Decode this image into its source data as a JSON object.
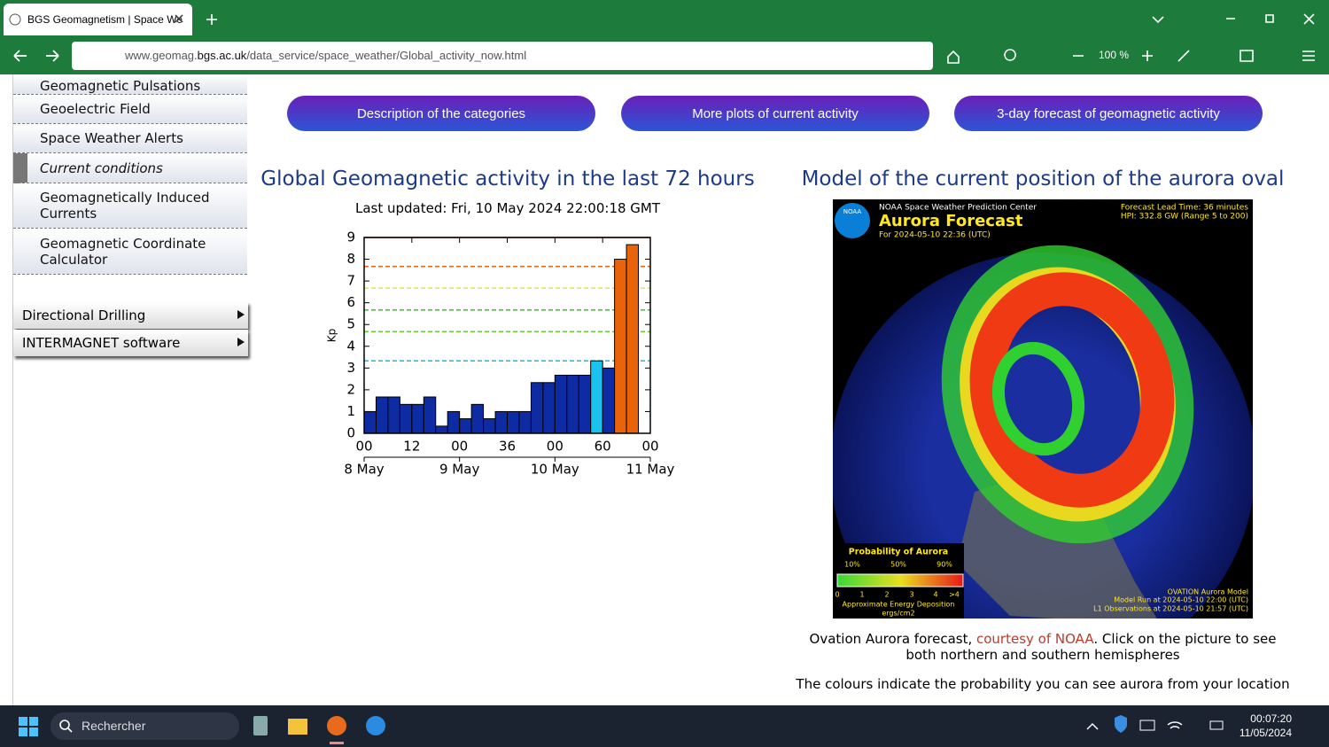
{
  "browser": {
    "tab_title": "BGS Geomagnetism | Space We",
    "url_host": "www.geomag.",
    "url_domain": "bgs.ac.uk",
    "url_path": "/data_service/space_weather/Global_activity_now.html",
    "zoom": "100 %"
  },
  "sidebar": {
    "items": [
      "Geomagnetic Pulsations",
      "Geoelectric Field",
      "Space Weather Alerts",
      "Current conditions",
      "Geomagnetically Induced Currents",
      "Geomagnetic Coordinate Calculator"
    ],
    "submenus": [
      "Directional Drilling",
      "INTERMAGNET software"
    ]
  },
  "buttons": [
    "Description of the categories",
    "More plots of current activity",
    "3-day forecast of geomagnetic activity"
  ],
  "chart_data": {
    "type": "histogram",
    "title": "Global Geomagnetic activity in the last 72 hours",
    "subtitle": "Last updated: Fri, 10 May 2024 22:00:18 GMT",
    "ylabel": "Kp",
    "bins": [
      0,
      3,
      6,
      9,
      12,
      15,
      18,
      21,
      24,
      27,
      30,
      33,
      36,
      39,
      42,
      45,
      48,
      51,
      54,
      57,
      60,
      63,
      66,
      69,
      72
    ],
    "values": [
      1,
      1.67,
      1.67,
      1.33,
      1.33,
      1.67,
      0.33,
      1,
      0.67,
      1.33,
      0.67,
      1,
      1,
      1,
      2.33,
      2.33,
      2.67,
      2.67,
      2.67,
      3.33,
      3,
      8,
      8.67,
      null
    ],
    "colors": [
      "#0d2ca3",
      "#0d2ca3",
      "#0d2ca3",
      "#0d2ca3",
      "#0d2ca3",
      "#0d2ca3",
      "#0d2ca3",
      "#0d2ca3",
      "#0d2ca3",
      "#0d2ca3",
      "#0d2ca3",
      "#0d2ca3",
      "#0d2ca3",
      "#0d2ca3",
      "#0d2ca3",
      "#0d2ca3",
      "#0d2ca3",
      "#0d2ca3",
      "#0d2ca3",
      "#19c3ee",
      "#0d2ca3",
      "#e8630a",
      "#e8630a",
      null
    ],
    "thresholds": [
      {
        "value": 3.33,
        "color": "#19c3ee"
      },
      {
        "value": 4.67,
        "color": "#5fd12a"
      },
      {
        "value": 5.67,
        "color": "#3ccf3c"
      },
      {
        "value": 6.67,
        "color": "#e8e83a"
      },
      {
        "value": 7.67,
        "color": "#e8630a"
      },
      {
        "value": 9,
        "color": "#e02020"
      }
    ],
    "xlim": [
      0,
      72
    ],
    "ylim": [
      0,
      9
    ],
    "yticks": [
      0,
      1,
      2,
      3,
      4,
      5,
      6,
      7,
      8,
      9
    ],
    "xticks": [
      {
        "value": 0,
        "label": "00"
      },
      12,
      {
        "value": 24,
        "label": "00"
      },
      36,
      {
        "value": 48,
        "label": "00"
      },
      60,
      {
        "value": 72,
        "label": "00"
      }
    ],
    "date_ticks": [
      {
        "value": 0,
        "label": "8 May"
      },
      {
        "value": 24,
        "label": "9 May"
      },
      {
        "value": 48,
        "label": "10 May"
      },
      {
        "value": 72,
        "label": "11 May"
      }
    ]
  },
  "aurora": {
    "title": "Model of the current position of the aurora oval",
    "image": {
      "agency": "NOAA",
      "center": "NOAA Space Weather Prediction Center",
      "heading": "Aurora Forecast",
      "for": "For 2024-05-10 22:36 (UTC)",
      "lead": "Forecast Lead Time:  36 minutes",
      "hpi": "HPI: 332.8 GW (Range 5 to 200)",
      "legend_title": "Probability of Aurora",
      "legend_pcts": [
        "10%",
        "50%",
        "90%"
      ],
      "energy_ticks": [
        "0",
        "1",
        "2",
        "3",
        "4",
        ">4"
      ],
      "energy_label": "Approximate Energy Deposition",
      "energy_unit": "ergs/cm2",
      "model": "OVATION Aurora Model",
      "run": "Model Run at 2024-05-10 22:00 (UTC)",
      "obs": "L1 Observations at 2024-05-10 21:57 (UTC)"
    },
    "caption_pre": "Ovation Aurora forecast, ",
    "caption_link": "courtesy of NOAA",
    "caption_post": ". Click on the picture to see both northern and southern hemispheres",
    "note": "The colours indicate the probability you can see aurora from your location"
  },
  "taskbar": {
    "search": "Rechercher",
    "time": "00:07:20",
    "date": "11/05/2024"
  }
}
